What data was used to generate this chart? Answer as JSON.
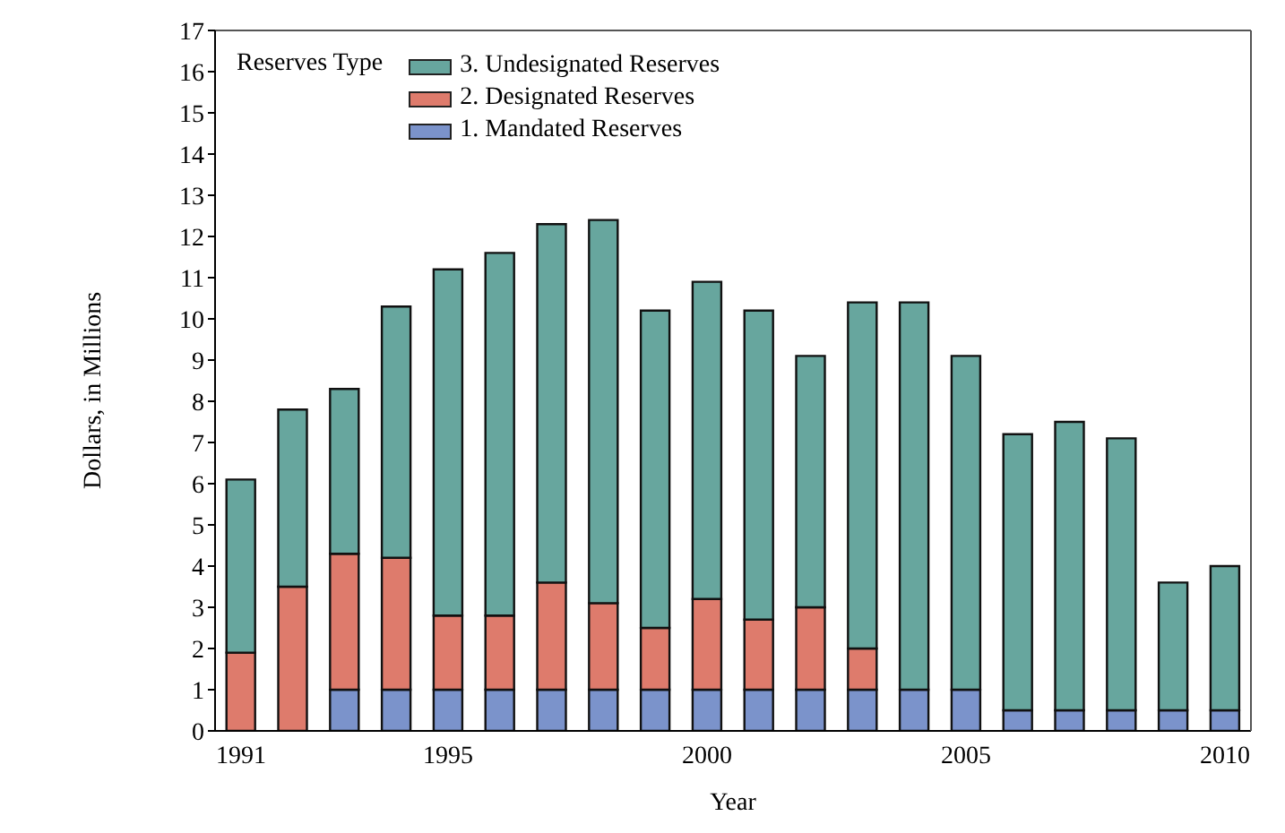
{
  "chart_data": {
    "type": "bar",
    "stacked": true,
    "xlabel": "Year",
    "ylabel": "Dollars, in Millions",
    "legend_title": "Reserves Type",
    "legend": "top left",
    "categories": [
      "1991",
      null,
      null,
      null,
      "1995",
      null,
      null,
      null,
      null,
      "2000",
      null,
      null,
      null,
      null,
      "2005",
      null,
      null,
      null,
      null,
      "2010"
    ],
    "series": [
      {
        "name": "1. Mandated Reserves",
        "color": "#7b93cb",
        "values": [
          0,
          0,
          1,
          1,
          1,
          1,
          1,
          1,
          1,
          1,
          1,
          1,
          1,
          1,
          1,
          0.5,
          0.5,
          0.5,
          0.5,
          0.5
        ]
      },
      {
        "name": "2. Designated Reserves",
        "color": "#de7b6c",
        "values": [
          1.9,
          3.5,
          3.3,
          3.2,
          1.8,
          1.8,
          2.6,
          2.1,
          1.5,
          2.2,
          1.7,
          2.0,
          1.0,
          0,
          0,
          0,
          0,
          0,
          0,
          0
        ]
      },
      {
        "name": "3. Undesignated Reserves",
        "color": "#67a69e",
        "values": [
          4.2,
          4.3,
          4.0,
          6.1,
          8.4,
          8.8,
          8.7,
          9.3,
          7.7,
          7.7,
          7.5,
          6.1,
          8.4,
          9.4,
          8.1,
          6.7,
          7.0,
          6.6,
          3.1,
          3.5
        ]
      }
    ],
    "ylim": [
      0,
      17
    ],
    "yticks": [
      0,
      1,
      2,
      3,
      4,
      5,
      6,
      7,
      8,
      9,
      10,
      11,
      12,
      13,
      14,
      15,
      16,
      17
    ]
  }
}
